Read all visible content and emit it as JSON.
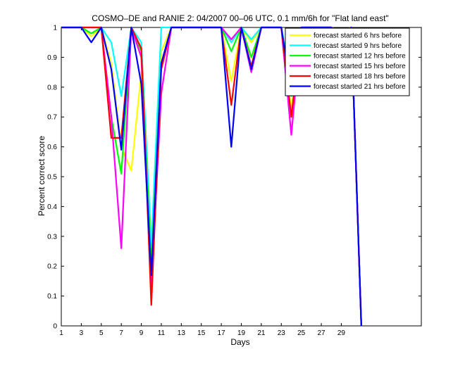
{
  "chart_data": {
    "type": "line",
    "title": "COSMO–DE and RANIE 2: 04/2007 00–06 UTC, 0.1 mm/6h for \"Flat land east\"",
    "xlabel": "Days",
    "ylabel": "Percent correct score",
    "xlim": [
      1,
      37
    ],
    "ylim": [
      0,
      1
    ],
    "xticks": [
      1,
      3,
      5,
      7,
      9,
      11,
      13,
      15,
      17,
      19,
      21,
      23,
      25,
      27,
      29
    ],
    "yticks": [
      0,
      0.1,
      0.2,
      0.3,
      0.4,
      0.5,
      0.6,
      0.7,
      0.8,
      0.9,
      1
    ],
    "ytick_labels": [
      "0",
      "0.1",
      "0.2",
      "0.3",
      "0.4",
      "0.5",
      "0.6",
      "0.7",
      "0.8",
      "0.9",
      "1"
    ],
    "legend_position": "top-right",
    "grid": false,
    "x": [
      1,
      2,
      3,
      4,
      5,
      6,
      7,
      8,
      9,
      10,
      11,
      12,
      13,
      14,
      15,
      16,
      17,
      18,
      19,
      20,
      21,
      22,
      23,
      24,
      25,
      26,
      27,
      28,
      29,
      30,
      31
    ],
    "series": [
      {
        "name": "forecast started 6 hrs before",
        "color": "#ffff00",
        "values": [
          1,
          1,
          1,
          0.97,
          1,
          0.88,
          0.6,
          0.52,
          0.85,
          0.2,
          0.92,
          1,
          1,
          1,
          1,
          1,
          1,
          0.82,
          1,
          0.95,
          1,
          1,
          1,
          0.72,
          1,
          1,
          1,
          1,
          0.98,
          1,
          0
        ]
      },
      {
        "name": "forecast started 9 hrs before",
        "color": "#00ffff",
        "values": [
          1,
          1,
          1,
          0.98,
          1,
          0.95,
          0.77,
          1,
          0.95,
          0.27,
          1,
          1,
          1,
          1,
          1,
          1,
          1,
          0.95,
          1,
          0.96,
          1,
          1,
          1,
          0.82,
          1,
          1,
          1,
          1,
          0.98,
          1,
          0
        ]
      },
      {
        "name": "forecast started 12 hrs before",
        "color": "#00ff00",
        "values": [
          1,
          1,
          1,
          0.98,
          1,
          0.7,
          0.51,
          1,
          0.92,
          0.2,
          0.88,
          1,
          1,
          1,
          1,
          1,
          1,
          0.92,
          1,
          0.9,
          1,
          1,
          1,
          0.77,
          1,
          1,
          1,
          1,
          0.98,
          1,
          0
        ]
      },
      {
        "name": "forecast started 15 hrs before",
        "color": "#ff00ff",
        "values": [
          1,
          1,
          1,
          1,
          1,
          0.7,
          0.26,
          1,
          0.9,
          0.13,
          0.78,
          1,
          1,
          1,
          1,
          1,
          1,
          0.96,
          1,
          0.85,
          1,
          1,
          1,
          0.64,
          1,
          1,
          1,
          1,
          0.98,
          1,
          0
        ]
      },
      {
        "name": "forecast started 18 hrs before",
        "color": "#ff0000",
        "values": [
          1,
          1,
          1,
          1,
          1,
          0.63,
          0.63,
          1,
          0.93,
          0.07,
          0.86,
          1,
          1,
          1,
          1,
          1,
          1,
          0.74,
          1,
          0.87,
          1,
          1,
          1,
          0.7,
          1,
          1,
          1,
          1,
          0.98,
          1,
          0
        ]
      },
      {
        "name": "forecast started 21 hrs before",
        "color": "#0000ff",
        "values": [
          1,
          1,
          1,
          0.95,
          1,
          0.86,
          0.59,
          1,
          0.81,
          0.17,
          0.88,
          1,
          1,
          1,
          1,
          1,
          1,
          0.6,
          1,
          0.86,
          1,
          1,
          1,
          0.78,
          1,
          1,
          1,
          1,
          0.97,
          1,
          0
        ]
      }
    ]
  }
}
